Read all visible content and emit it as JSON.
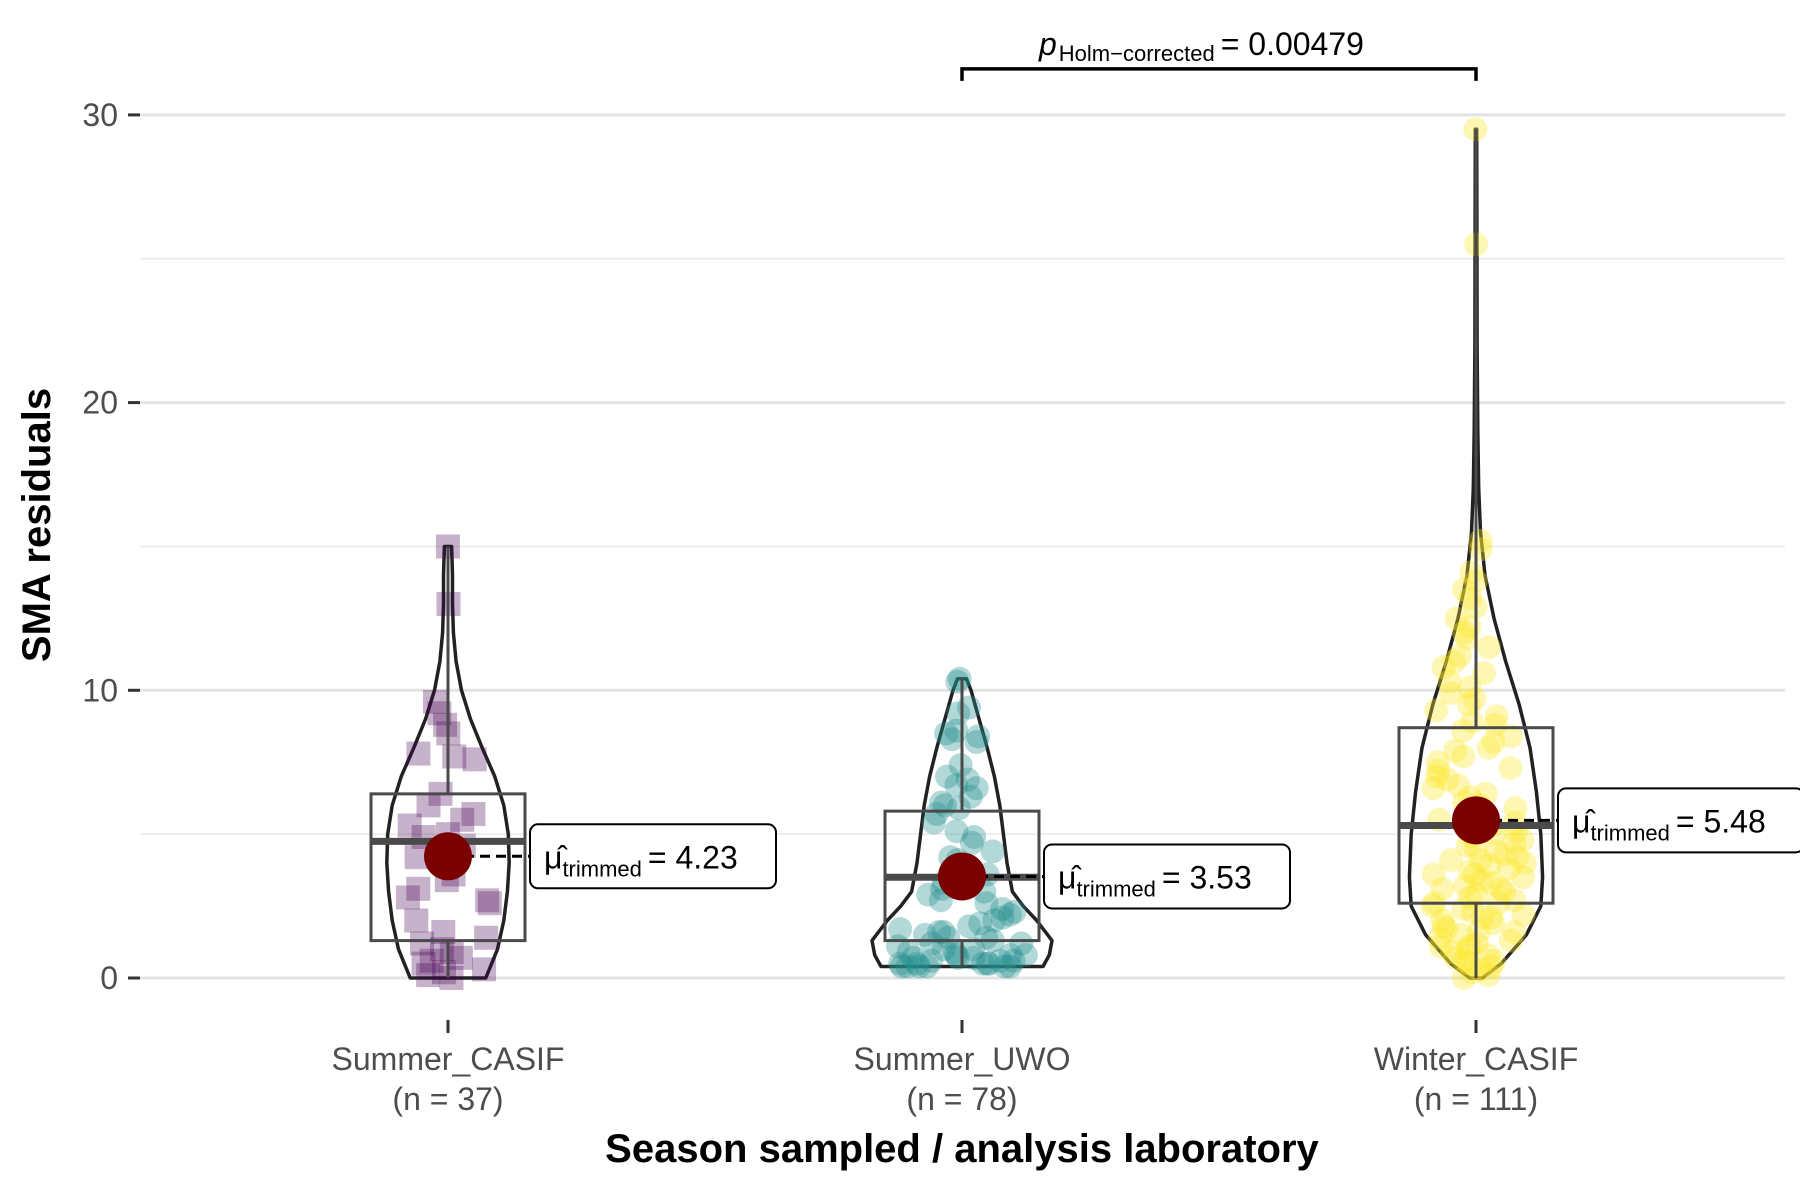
{
  "chart_data": {
    "type": "violin",
    "xlabel": "Season sampled / analysis laboratory",
    "ylabel": "SMA residuals",
    "ylim": [
      -1.5,
      33
    ],
    "yticks": [
      0,
      10,
      20,
      30
    ],
    "grid": true,
    "groups": [
      {
        "name": "Summer_CASIF",
        "n_label": "(n = 37)",
        "color": "#440154",
        "marker": "square",
        "box": {
          "q1": 1.3,
          "median": 4.75,
          "q3": 6.4,
          "min": 0.0,
          "max": 15.0
        },
        "trimmed_mean": 4.23,
        "mean_label_value": "4.23",
        "points": [
          15.0,
          13.0,
          9.6,
          9.2,
          8.8,
          8.5,
          7.8,
          7.6,
          7.7,
          6.4,
          6.0,
          5.7,
          5.5,
          5.3,
          5.0,
          4.9,
          4.6,
          4.2,
          3.6,
          3.4,
          3.1,
          2.8,
          2.7,
          2.6,
          2.0,
          1.6,
          1.4,
          1.2,
          1.0,
          0.9,
          0.7,
          0.6,
          0.5,
          0.3,
          0.2,
          0.1,
          0.0
        ],
        "violin_profile": [
          [
            0.0,
            0.42
          ],
          [
            1.0,
            0.55
          ],
          [
            2.0,
            0.62
          ],
          [
            3.0,
            0.66
          ],
          [
            4.0,
            0.68
          ],
          [
            5.0,
            0.67
          ],
          [
            6.0,
            0.62
          ],
          [
            7.0,
            0.52
          ],
          [
            8.0,
            0.38
          ],
          [
            9.0,
            0.25
          ],
          [
            10.0,
            0.15
          ],
          [
            11.0,
            0.09
          ],
          [
            12.0,
            0.06
          ],
          [
            13.0,
            0.05
          ],
          [
            14.0,
            0.05
          ],
          [
            15.0,
            0.04
          ]
        ]
      },
      {
        "name": "Summer_UWO",
        "n_label": "(n = 78)",
        "color": "#21908C",
        "marker": "circle",
        "box": {
          "q1": 1.3,
          "median": 3.5,
          "q3": 5.8,
          "min": 0.4,
          "max": 10.4
        },
        "trimmed_mean": 3.53,
        "mean_label_value": "3.53",
        "points": [
          10.4,
          10.3,
          9.4,
          9.2,
          8.6,
          8.5,
          8.4,
          8.3,
          8.2,
          7.4,
          7.0,
          6.9,
          6.7,
          6.6,
          6.3,
          6.1,
          6.0,
          5.9,
          5.7,
          5.4,
          5.1,
          4.9,
          4.7,
          4.4,
          4.2,
          4.1,
          3.9,
          3.8,
          3.6,
          3.5,
          3.4,
          3.3,
          3.1,
          3.0,
          2.9,
          2.7,
          2.6,
          2.4,
          2.3,
          2.2,
          2.1,
          2.0,
          1.9,
          1.8,
          1.7,
          1.6,
          1.6,
          1.5,
          1.4,
          1.4,
          1.3,
          1.2,
          1.2,
          1.1,
          1.0,
          1.0,
          0.9,
          0.9,
          0.8,
          0.8,
          0.8,
          0.7,
          0.7,
          0.7,
          0.6,
          0.6,
          0.6,
          0.5,
          0.5,
          0.5,
          0.5,
          0.5,
          0.4,
          0.4,
          0.4,
          0.4,
          0.4,
          0.4
        ],
        "violin_profile": [
          [
            0.4,
            0.9
          ],
          [
            0.8,
            0.97
          ],
          [
            1.3,
            1.0
          ],
          [
            2.0,
            0.83
          ],
          [
            2.5,
            0.68
          ],
          [
            3.0,
            0.56
          ],
          [
            4.0,
            0.5
          ],
          [
            5.0,
            0.46
          ],
          [
            6.0,
            0.42
          ],
          [
            7.0,
            0.36
          ],
          [
            8.0,
            0.28
          ],
          [
            9.0,
            0.19
          ],
          [
            10.0,
            0.1
          ],
          [
            10.4,
            0.05
          ]
        ]
      },
      {
        "name": "Winter_CASIF",
        "n_label": "(n = 111)",
        "color": "#FDE725",
        "marker": "circle",
        "box": {
          "q1": 2.6,
          "median": 5.3,
          "q3": 8.7,
          "min": 0.0,
          "max": 29.5
        },
        "trimmed_mean": 5.48,
        "mean_label_value": "5.48",
        "points": [
          29.5,
          25.5,
          15.2,
          14.9,
          14.1,
          13.8,
          13.5,
          13.2,
          12.9,
          12.5,
          12.2,
          12.0,
          11.8,
          11.5,
          11.2,
          11.0,
          10.8,
          10.6,
          10.3,
          10.1,
          9.9,
          9.7,
          9.5,
          9.3,
          9.1,
          8.9,
          8.8,
          8.6,
          8.4,
          8.2,
          8.0,
          7.9,
          7.7,
          7.5,
          7.3,
          7.2,
          7.0,
          6.9,
          6.7,
          6.6,
          6.4,
          6.3,
          6.1,
          6.0,
          5.9,
          5.8,
          5.6,
          5.5,
          5.4,
          5.3,
          5.2,
          5.1,
          5.0,
          4.9,
          4.8,
          4.7,
          4.6,
          4.5,
          4.4,
          4.3,
          4.2,
          4.1,
          4.0,
          3.9,
          3.8,
          3.7,
          3.6,
          3.5,
          3.4,
          3.3,
          3.2,
          3.1,
          3.0,
          2.9,
          2.8,
          2.7,
          2.6,
          2.5,
          2.4,
          2.3,
          2.2,
          2.1,
          2.0,
          1.9,
          1.8,
          1.7,
          1.6,
          1.5,
          1.4,
          1.3,
          1.2,
          1.1,
          1.0,
          0.9,
          0.8,
          0.7,
          0.6,
          0.5,
          0.4,
          0.3,
          0.2,
          0.1,
          0.0,
          0.6,
          1.1,
          1.6,
          2.1,
          2.6,
          3.1,
          3.6,
          4.1
        ],
        "violin_profile": [
          [
            0.0,
            0.07
          ],
          [
            0.5,
            0.28
          ],
          [
            1.5,
            0.56
          ],
          [
            2.5,
            0.72
          ],
          [
            3.5,
            0.74
          ],
          [
            5.0,
            0.72
          ],
          [
            6.5,
            0.67
          ],
          [
            8.0,
            0.6
          ],
          [
            9.5,
            0.48
          ],
          [
            11.0,
            0.33
          ],
          [
            12.5,
            0.2
          ],
          [
            14.0,
            0.1
          ],
          [
            15.5,
            0.05
          ],
          [
            17.0,
            0.03
          ],
          [
            19.0,
            0.02
          ],
          [
            22.0,
            0.012
          ],
          [
            26.0,
            0.01
          ],
          [
            29.5,
            0.008
          ]
        ]
      }
    ],
    "comparison": {
      "from": "Summer_UWO",
      "to": "Winter_CASIF",
      "y": 31.6,
      "p_symbol": "p",
      "p_subscript": "Holm−corrected",
      "p_value_text": "= 0.00479"
    },
    "mean_label": {
      "symbol": "μ̂",
      "subscript": "trimmed",
      "prefix": "= "
    }
  }
}
